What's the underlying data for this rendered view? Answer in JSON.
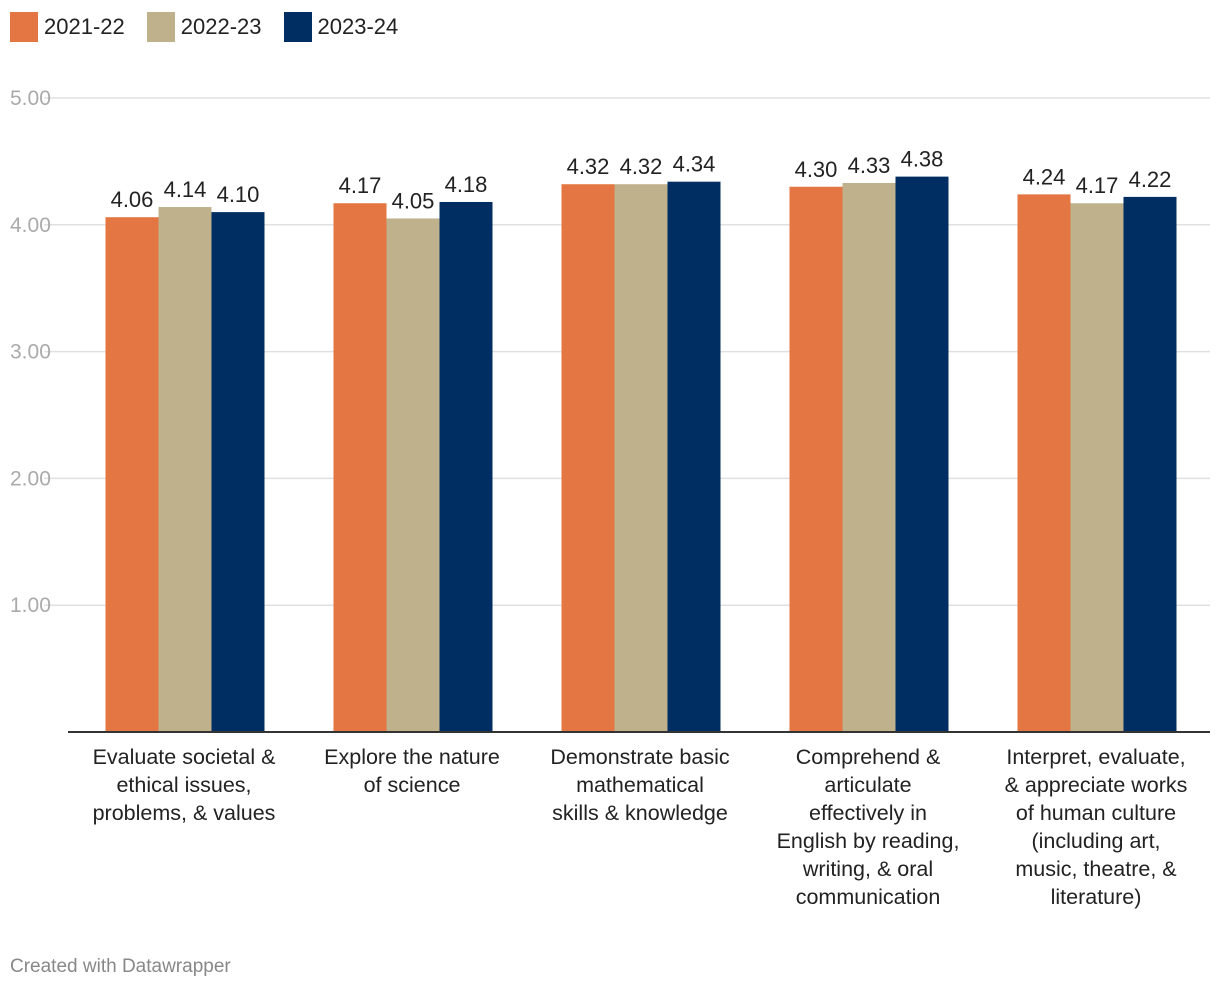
{
  "chart_data": {
    "type": "bar",
    "title": "",
    "xlabel": "",
    "ylabel": "",
    "ylim": [
      0,
      5
    ],
    "yticks": [
      1,
      2,
      3,
      4,
      5
    ],
    "ytick_labels": [
      "1.00",
      "2.00",
      "3.00",
      "4.00",
      "5.00"
    ],
    "legend_position": "top-left",
    "grid": true,
    "categories": [
      [
        "Evaluate societal &",
        "ethical issues,",
        "problems, & values"
      ],
      [
        "Explore the nature",
        "of science"
      ],
      [
        "Demonstrate basic",
        "mathematical",
        "skills & knowledge"
      ],
      [
        "Comprehend &",
        "articulate",
        "effectively in",
        "English by reading,",
        "writing, & oral",
        "communication"
      ],
      [
        "Interpret, evaluate,",
        "& appreciate works",
        "of human culture",
        "(including art,",
        "music, theatre, &",
        "literature)"
      ]
    ],
    "series": [
      {
        "name": "2021-22",
        "color": "#e37642",
        "values": [
          4.06,
          4.17,
          4.32,
          4.3,
          4.24
        ],
        "labels": [
          "4.06",
          "4.17",
          "4.32",
          "4.30",
          "4.24"
        ]
      },
      {
        "name": "2022-23",
        "color": "#bfb18c",
        "values": [
          4.14,
          4.05,
          4.32,
          4.33,
          4.17
        ],
        "labels": [
          "4.14",
          "4.05",
          "4.32",
          "4.33",
          "4.17"
        ]
      },
      {
        "name": "2023-24",
        "color": "#002d62",
        "values": [
          4.1,
          4.18,
          4.34,
          4.38,
          4.22
        ],
        "labels": [
          "4.10",
          "4.18",
          "4.34",
          "4.38",
          "4.22"
        ]
      }
    ]
  },
  "footer": {
    "credit": "Created with Datawrapper"
  }
}
